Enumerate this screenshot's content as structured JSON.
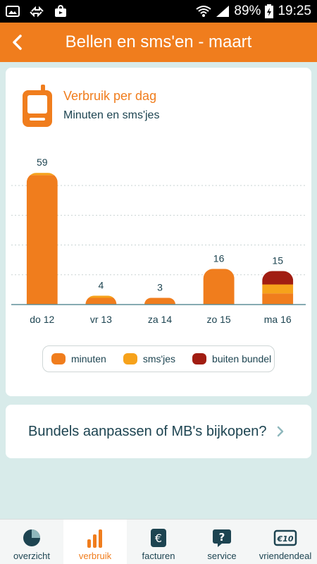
{
  "status_bar": {
    "battery": "89%",
    "time": "19:25"
  },
  "header": {
    "title": "Bellen en sms'en - maart"
  },
  "card": {
    "title": "Verbruik per dag",
    "subtitle": "Minuten en sms'jes"
  },
  "colors": {
    "minuten": "#f07d1d",
    "smsjes": "#f6a21b",
    "buiten_bundel": "#a11d12",
    "brand": "#f07d1d",
    "text": "#1d4451"
  },
  "chart_data": {
    "type": "bar",
    "categories": [
      "do 12",
      "vr 13",
      "za 14",
      "zo 15",
      "ma 16"
    ],
    "totals": [
      59,
      4,
      3,
      16,
      15
    ],
    "series": [
      {
        "name": "minuten",
        "values": [
          58,
          3,
          3,
          16,
          5
        ]
      },
      {
        "name": "sms'jes",
        "values": [
          1,
          1,
          0,
          0,
          4
        ]
      },
      {
        "name": "buiten bundel",
        "values": [
          0,
          0,
          0,
          0,
          6
        ]
      }
    ],
    "ylim": [
      0,
      60
    ],
    "grid": true,
    "legend": "bottom"
  },
  "link": {
    "text": "Bundels aanpassen of MB's bijkopen?"
  },
  "nav": {
    "items": [
      {
        "label": "overzicht",
        "icon": "pie-chart-icon"
      },
      {
        "label": "verbruik",
        "icon": "bar-chart-icon"
      },
      {
        "label": "facturen",
        "icon": "euro-icon"
      },
      {
        "label": "service",
        "icon": "question-icon"
      },
      {
        "label": "vriendendeal",
        "icon": "euro-ticket-icon"
      }
    ]
  }
}
